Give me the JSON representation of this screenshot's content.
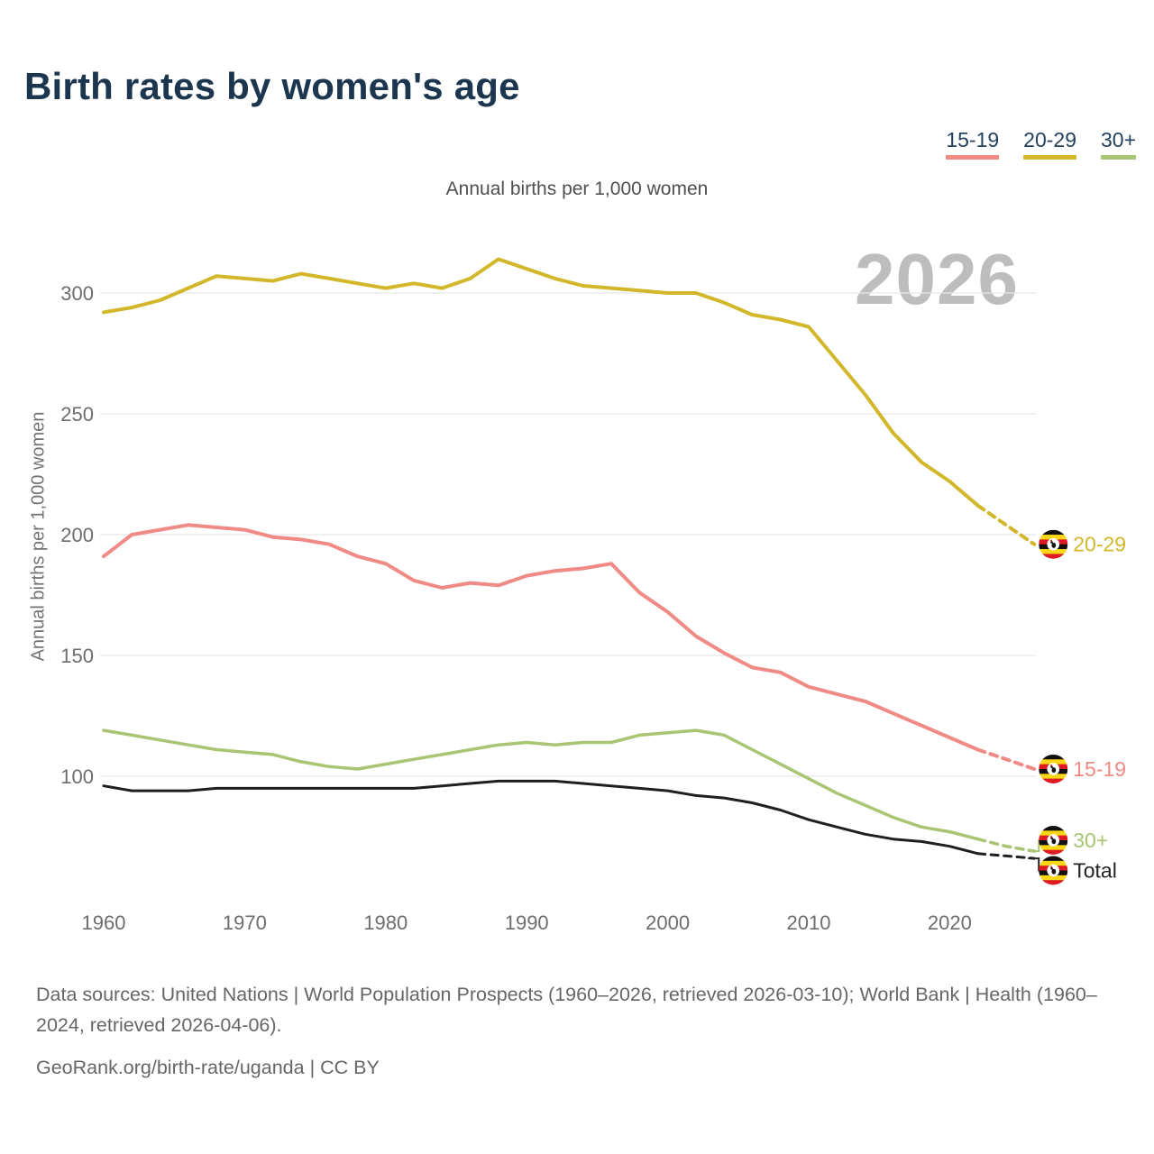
{
  "header": {
    "title": "Birth rates by women's age"
  },
  "legend": {
    "items": [
      {
        "label": "15-19",
        "color": "#f08a85"
      },
      {
        "label": "20-29",
        "color": "#d2b72b"
      },
      {
        "label": "30+",
        "color": "#a9c472"
      }
    ]
  },
  "chart_data": {
    "type": "line",
    "subtitle": "Annual births per 1,000 women",
    "ylabel": "Annual births per 1,000 women",
    "watermark": "2026",
    "grid": true,
    "legend_position": "top-right",
    "xlim": [
      1960,
      2026
    ],
    "ylim": [
      55,
      320
    ],
    "x_ticks": [
      1960,
      1970,
      1980,
      1990,
      2000,
      2010,
      2020
    ],
    "y_ticks": [
      100,
      150,
      200,
      250,
      300
    ],
    "projection_dashed_from": 2022,
    "x": [
      1960,
      1962,
      1964,
      1966,
      1968,
      1970,
      1972,
      1974,
      1976,
      1978,
      1980,
      1982,
      1984,
      1986,
      1988,
      1990,
      1992,
      1994,
      1996,
      1998,
      2000,
      2002,
      2004,
      2006,
      2008,
      2010,
      2012,
      2014,
      2016,
      2018,
      2020,
      2022,
      2024,
      2026
    ],
    "series": [
      {
        "name": "20-29",
        "color": "#d2b72b",
        "values": [
          292,
          294,
          297,
          302,
          307,
          306,
          305,
          308,
          306,
          304,
          302,
          304,
          302,
          306,
          314,
          310,
          306,
          303,
          302,
          301,
          300,
          300,
          296,
          291,
          289,
          286,
          272,
          258,
          242,
          230,
          222,
          212,
          204,
          196
        ],
        "end_label": {
          "text": "20-29",
          "label_value": 196,
          "connector": false
        }
      },
      {
        "name": "15-19",
        "color": "#f08a85",
        "values": [
          191,
          200,
          202,
          204,
          203,
          202,
          199,
          198,
          196,
          191,
          188,
          181,
          178,
          180,
          179,
          183,
          185,
          186,
          188,
          176,
          168,
          158,
          151,
          145,
          143,
          137,
          134,
          131,
          126,
          121,
          116,
          111,
          107,
          103
        ],
        "end_label": {
          "text": "15-19",
          "label_value": 103,
          "connector": false
        }
      },
      {
        "name": "30+",
        "color": "#a9c472",
        "values": [
          119,
          117,
          115,
          113,
          111,
          110,
          109,
          106,
          104,
          103,
          105,
          107,
          109,
          111,
          113,
          114,
          113,
          114,
          114,
          117,
          118,
          119,
          117,
          111,
          105,
          99,
          93,
          88,
          83,
          79,
          77,
          74,
          71,
          69
        ],
        "end_label": {
          "text": "30+",
          "label_value": 73.5,
          "connector": true
        }
      },
      {
        "name": "Total",
        "color": "#1f1f1f",
        "values": [
          96,
          94,
          94,
          94,
          95,
          95,
          95,
          95,
          95,
          95,
          95,
          95,
          96,
          97,
          98,
          98,
          98,
          97,
          96,
          95,
          94,
          92,
          91,
          89,
          86,
          82,
          79,
          76,
          74,
          73,
          71,
          68,
          67,
          66
        ],
        "end_label": {
          "text": "Total",
          "label_value": 61,
          "connector": true
        }
      }
    ],
    "flag_icon": "uganda-flag-icon",
    "flag_colors": {
      "black": "#111111",
      "yellow": "#f9d616",
      "red": "#de1b22"
    }
  },
  "footer": {
    "sources": "Data sources: United Nations | World Population Prospects (1960–2026, retrieved 2026-03-10); World Bank | Health (1960–2024, retrieved 2026-04-06).",
    "credit": "GeoRank.org/birth-rate/uganda | CC BY"
  }
}
